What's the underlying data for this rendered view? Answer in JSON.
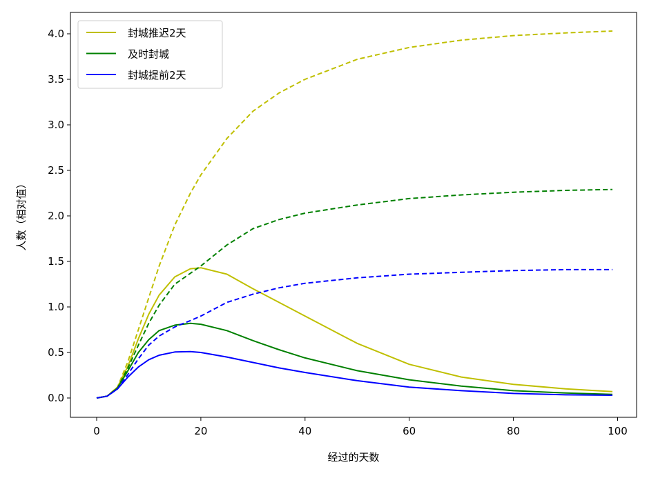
{
  "chart_data": {
    "type": "line",
    "title": "",
    "xlabel": "经过的天数",
    "ylabel": "人数（相对值）",
    "xlim": [
      -5,
      104
    ],
    "ylim": [
      -0.2,
      4.22
    ],
    "xticks": [
      "0",
      "20",
      "40",
      "60",
      "80",
      "100"
    ],
    "yticks": [
      "0.0",
      "0.5",
      "1.0",
      "1.5",
      "2.0",
      "2.5",
      "3.0",
      "3.5",
      "4.0"
    ],
    "grid": false,
    "legend_position": "top-left",
    "x": [
      0,
      2,
      4,
      6,
      8,
      10,
      12,
      15,
      18,
      20,
      25,
      30,
      35,
      40,
      50,
      60,
      70,
      80,
      90,
      99
    ],
    "series": [
      {
        "name": "封城推迟2天",
        "color": "#bfbf00",
        "style": "solid",
        "values": [
          0,
          0.02,
          0.12,
          0.35,
          0.65,
          0.92,
          1.13,
          1.33,
          1.42,
          1.43,
          1.36,
          1.2,
          1.05,
          0.9,
          0.6,
          0.37,
          0.23,
          0.15,
          0.1,
          0.07
        ]
      },
      {
        "name": "及时封城",
        "color": "#008000",
        "style": "solid",
        "values": [
          0,
          0.02,
          0.11,
          0.3,
          0.5,
          0.64,
          0.74,
          0.8,
          0.82,
          0.81,
          0.74,
          0.63,
          0.53,
          0.44,
          0.3,
          0.2,
          0.13,
          0.08,
          0.055,
          0.04
        ]
      },
      {
        "name": "封城提前2天",
        "color": "#0000ff",
        "style": "solid",
        "values": [
          0,
          0.02,
          0.1,
          0.23,
          0.34,
          0.42,
          0.47,
          0.505,
          0.51,
          0.5,
          0.45,
          0.39,
          0.33,
          0.28,
          0.19,
          0.12,
          0.08,
          0.05,
          0.035,
          0.03
        ]
      },
      {
        "color": "#bfbf00",
        "style": "dashed",
        "values": [
          0,
          0.02,
          0.12,
          0.4,
          0.75,
          1.1,
          1.45,
          1.9,
          2.25,
          2.45,
          2.85,
          3.15,
          3.35,
          3.5,
          3.72,
          3.85,
          3.93,
          3.98,
          4.01,
          4.03
        ]
      },
      {
        "color": "#008000",
        "style": "dashed",
        "values": [
          0,
          0.02,
          0.11,
          0.33,
          0.58,
          0.82,
          1.02,
          1.25,
          1.37,
          1.45,
          1.68,
          1.86,
          1.96,
          2.03,
          2.12,
          2.19,
          2.23,
          2.26,
          2.28,
          2.29
        ]
      },
      {
        "color": "#0000ff",
        "style": "dashed",
        "values": [
          0,
          0.02,
          0.1,
          0.26,
          0.43,
          0.58,
          0.68,
          0.78,
          0.85,
          0.9,
          1.05,
          1.14,
          1.21,
          1.26,
          1.32,
          1.36,
          1.38,
          1.4,
          1.41,
          1.41
        ]
      }
    ],
    "legend": [
      "封城推迟2天",
      "及时封城",
      "封城提前2天"
    ]
  }
}
